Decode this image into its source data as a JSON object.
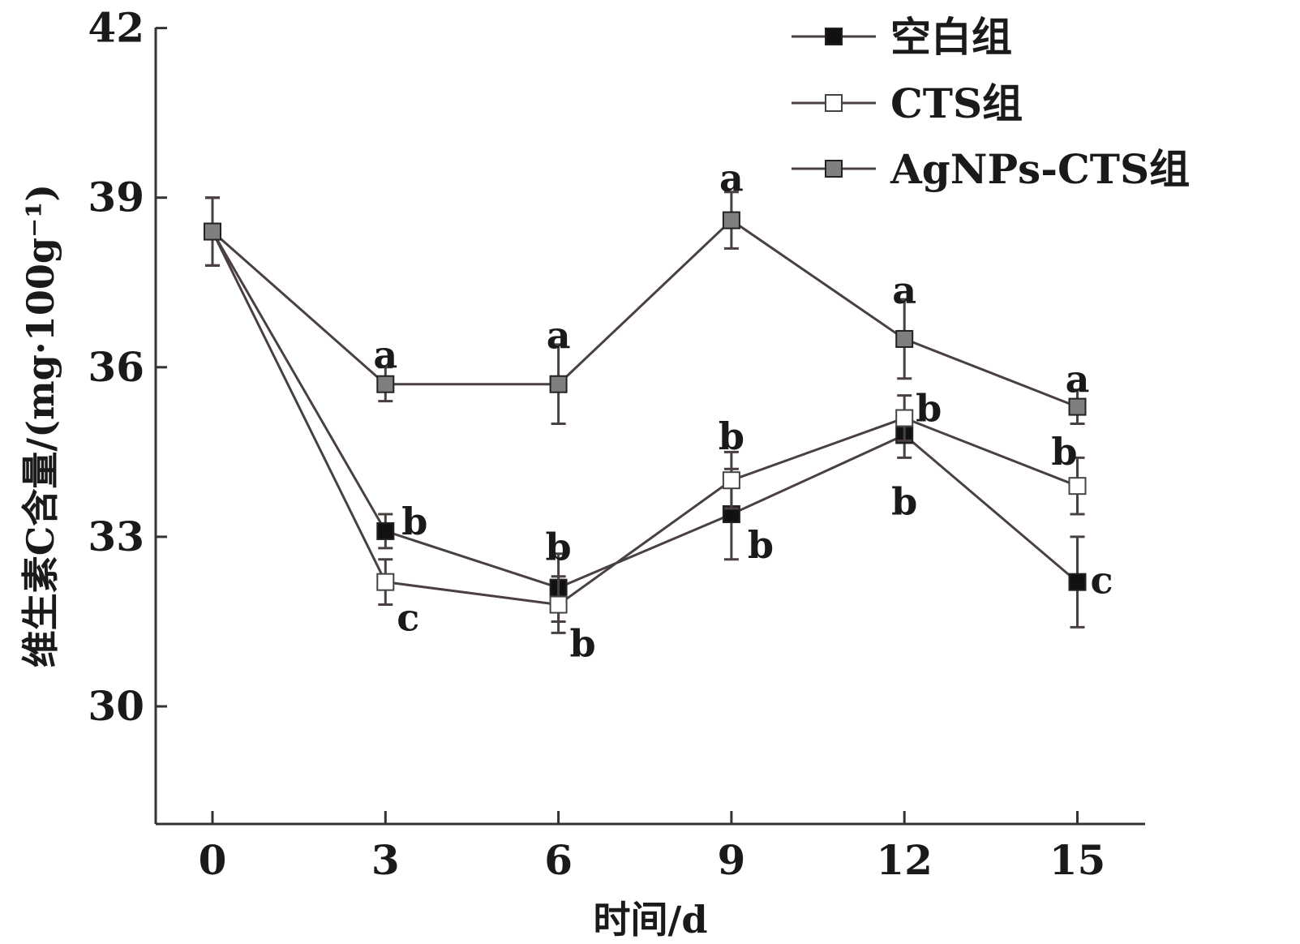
{
  "chart_data": {
    "type": "line",
    "title": "",
    "xlabel": "时间/d",
    "ylabel": "维生素C含量/(mg·100g⁻¹)",
    "x": [
      0,
      3,
      6,
      9,
      12,
      15
    ],
    "x_ticks": [
      "0",
      "3",
      "6",
      "9",
      "12",
      "15"
    ],
    "xlim": [
      -1,
      16.5
    ],
    "y_ticks": [
      "30",
      "33",
      "36",
      "39",
      "42"
    ],
    "ylim": [
      28,
      42
    ],
    "grid": false,
    "legend_position": "top-right",
    "series": [
      {
        "name": "空白组",
        "marker": "filled-square",
        "color": "#111111",
        "values": [
          38.4,
          33.1,
          32.1,
          33.4,
          34.8,
          32.2
        ],
        "errors": [
          0.6,
          0.3,
          0.6,
          0.8,
          0.4,
          0.8
        ],
        "labels": [
          "",
          "b",
          "b",
          "b",
          "b",
          "c"
        ]
      },
      {
        "name": "CTS组",
        "marker": "open-square",
        "color": "#ffffff",
        "values": [
          38.4,
          32.2,
          31.8,
          34.0,
          35.1,
          33.9
        ],
        "errors": [
          0.6,
          0.4,
          0.5,
          0.5,
          0.4,
          0.5
        ],
        "labels": [
          "",
          "c",
          "b",
          "b",
          "b",
          "b"
        ]
      },
      {
        "name": "AgNPs-CTS组",
        "marker": "gray-square",
        "color": "#7f7f7f",
        "values": [
          38.4,
          35.7,
          35.7,
          38.6,
          36.5,
          35.3
        ],
        "errors": [
          0.6,
          0.3,
          0.7,
          0.5,
          0.7,
          0.3
        ],
        "labels": [
          "",
          "a",
          "a",
          "a",
          "a",
          "a"
        ]
      }
    ]
  }
}
